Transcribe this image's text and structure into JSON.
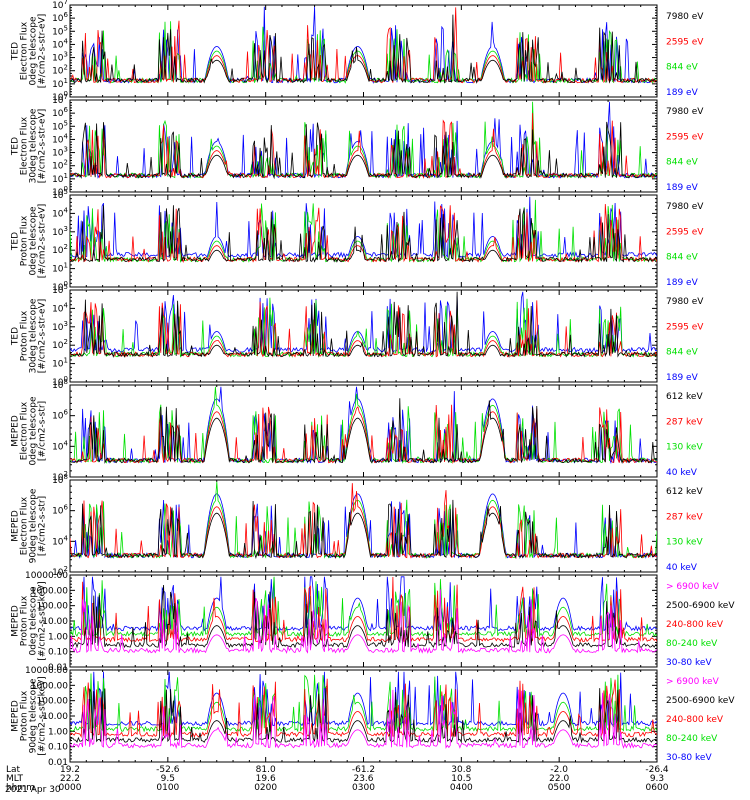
{
  "colors": {
    "blue": "#0000ff",
    "red": "#ff0000",
    "green": "#00e000",
    "black": "#000000",
    "magenta": "#ff00ff"
  },
  "chart_data": [
    {
      "type": "line",
      "ylabel": [
        "TED",
        "Electron Flux",
        "0deg telescope",
        "[#/cm2-s-str-eV]"
      ],
      "scale": "log",
      "ytick_labels": [
        "10^0",
        "10^1",
        "10^2",
        "10^3",
        "10^4",
        "10^5",
        "10^6",
        "10^7"
      ],
      "legend": [
        {
          "name": "7980 eV",
          "color": "#000000"
        },
        {
          "name": "2595 eV",
          "color": "#ff0000"
        },
        {
          "name": "844 eV",
          "color": "#00e000"
        },
        {
          "name": "189 eV",
          "color": "#0000ff"
        }
      ]
    },
    {
      "type": "line",
      "ylabel": [
        "TED",
        "Electron Flux",
        "30deg telescope",
        "[#/cm2-s-str-eV]"
      ],
      "scale": "log",
      "ytick_labels": [
        "10^0",
        "10^1",
        "10^2",
        "10^3",
        "10^4",
        "10^5",
        "10^6",
        "10^7"
      ],
      "legend": [
        {
          "name": "7980 eV",
          "color": "#000000"
        },
        {
          "name": "2595 eV",
          "color": "#ff0000"
        },
        {
          "name": "844 eV",
          "color": "#00e000"
        },
        {
          "name": "189 eV",
          "color": "#0000ff"
        }
      ]
    },
    {
      "type": "line",
      "ylabel": [
        "TED",
        "Proton Flux",
        "0deg telescope",
        "[#/cm2-s-str-eV]"
      ],
      "scale": "log",
      "ytick_labels": [
        "10^0",
        "10^1",
        "10^2",
        "10^3",
        "10^4",
        "10^5"
      ],
      "legend": [
        {
          "name": "7980 eV",
          "color": "#000000"
        },
        {
          "name": "2595 eV",
          "color": "#ff0000"
        },
        {
          "name": "844 eV",
          "color": "#00e000"
        },
        {
          "name": "189 eV",
          "color": "#0000ff"
        }
      ]
    },
    {
      "type": "line",
      "ylabel": [
        "TED",
        "Proton Flux",
        "30deg telescope",
        "[#/cm2-s-str-eV]"
      ],
      "scale": "log",
      "ytick_labels": [
        "10^0",
        "10^1",
        "10^2",
        "10^3",
        "10^4",
        "10^5"
      ],
      "legend": [
        {
          "name": "7980 eV",
          "color": "#000000"
        },
        {
          "name": "2595 eV",
          "color": "#ff0000"
        },
        {
          "name": "844 eV",
          "color": "#00e000"
        },
        {
          "name": "189 eV",
          "color": "#0000ff"
        }
      ]
    },
    {
      "type": "line",
      "ylabel": [
        "MEPED",
        "Electron Flux",
        "0deg telescope",
        "[#/cm2-s-str]"
      ],
      "scale": "log",
      "ytick_labels": [
        "10^2",
        "10^4",
        "10^6",
        "10^8"
      ],
      "legend": [
        {
          "name": "612 keV",
          "color": "#000000"
        },
        {
          "name": "287 keV",
          "color": "#ff0000"
        },
        {
          "name": "130 keV",
          "color": "#00e000"
        },
        {
          "name": "40 keV",
          "color": "#0000ff"
        }
      ]
    },
    {
      "type": "line",
      "ylabel": [
        "MEPED",
        "Electron Flux",
        "90deg telescope",
        "[#/cm2-s-str]"
      ],
      "scale": "log",
      "ytick_labels": [
        "10^2",
        "10^4",
        "10^6",
        "10^8"
      ],
      "legend": [
        {
          "name": "612 keV",
          "color": "#000000"
        },
        {
          "name": "287 keV",
          "color": "#ff0000"
        },
        {
          "name": "130 keV",
          "color": "#00e000"
        },
        {
          "name": "40 keV",
          "color": "#0000ff"
        }
      ]
    },
    {
      "type": "line",
      "ylabel": [
        "MEPED",
        "Proton Flux",
        "0deg telescope",
        "[#/cm2-s-str-keV]"
      ],
      "scale": "log",
      "ytick_labels": [
        "0.01",
        "0.10",
        "1.00",
        "10.00",
        "100.00",
        "1000.00",
        "10000.00"
      ],
      "legend": [
        {
          "name": "> 6900 keV",
          "color": "#ff00ff"
        },
        {
          "name": "2500-6900 keV",
          "color": "#000000"
        },
        {
          "name": "240-800 keV",
          "color": "#ff0000"
        },
        {
          "name": "80-240 keV",
          "color": "#00e000"
        },
        {
          "name": "30-80 keV",
          "color": "#0000ff"
        }
      ]
    },
    {
      "type": "line",
      "ylabel": [
        "MEPED",
        "Proton Flux",
        "90deg telescope",
        "[#/cm2-s-str-keV]"
      ],
      "scale": "log",
      "ytick_labels": [
        "0.01",
        "0.10",
        "1.00",
        "10.00",
        "100.00",
        "1000.00",
        "10000.00"
      ],
      "legend": [
        {
          "name": "> 6900 keV",
          "color": "#ff00ff"
        },
        {
          "name": "2500-6900 keV",
          "color": "#000000"
        },
        {
          "name": "240-800 keV",
          "color": "#ff0000"
        },
        {
          "name": "80-240 keV",
          "color": "#00e000"
        },
        {
          "name": "30-80 keV",
          "color": "#0000ff"
        }
      ]
    }
  ],
  "x_axis": {
    "row_labels": [
      "Lat",
      "MLT",
      "hhmm"
    ],
    "lat": [
      "19.2",
      "-52.6",
      "81.0",
      "-61.2",
      "30.8",
      "-2.0",
      "-26.4"
    ],
    "mlt": [
      "22.2",
      "9.5",
      "19.6",
      "23.6",
      "10.5",
      "22.0",
      "9.3"
    ],
    "hhmm": [
      "0000",
      "0100",
      "0200",
      "0300",
      "0400",
      "0500",
      "0600"
    ],
    "date": "2021 Apr 30"
  }
}
